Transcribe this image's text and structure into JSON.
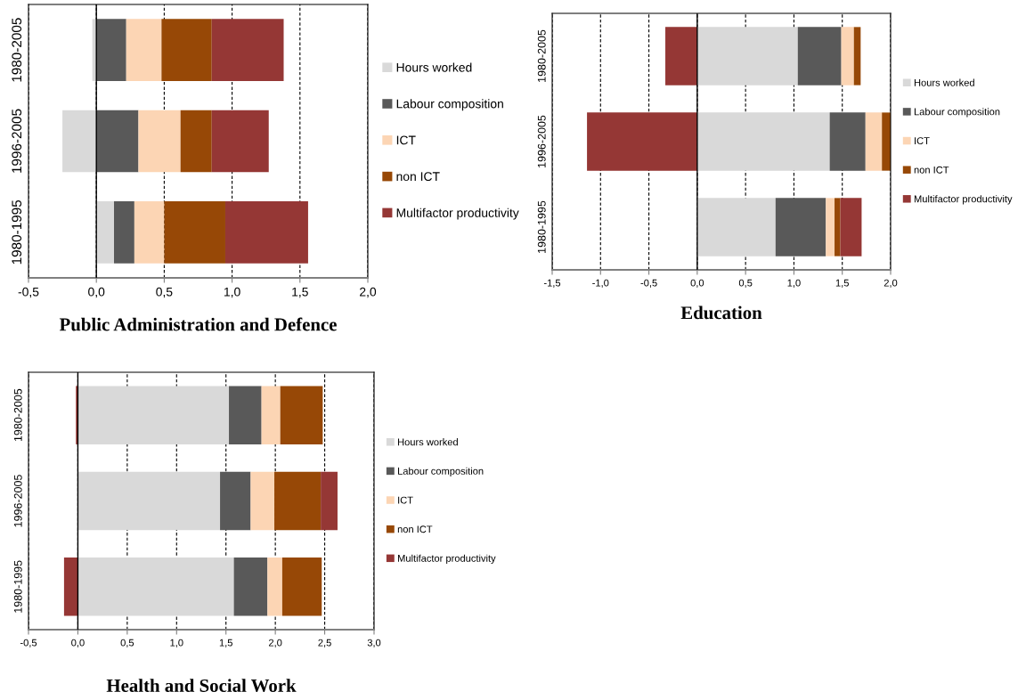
{
  "chart_data": [
    {
      "type": "bar",
      "orientation": "horizontal",
      "stacked": true,
      "title": "Public Administration and Defence",
      "categories": [
        "1980-2005",
        "1996-2005",
        "1980-1995"
      ],
      "xlim": [
        -0.5,
        2.0
      ],
      "xticks": [
        {
          "value": -0.5,
          "label": "-0,5"
        },
        {
          "value": 0.0,
          "label": "0,0"
        },
        {
          "value": 0.5,
          "label": "0,5"
        },
        {
          "value": 1.0,
          "label": "1,0"
        },
        {
          "value": 1.5,
          "label": "1,5"
        },
        {
          "value": 2.0,
          "label": "2,0"
        }
      ],
      "grid": "x",
      "legend": "right",
      "series": [
        {
          "name": "Hours worked",
          "color": "#d9d9d9",
          "values": [
            -0.03,
            -0.25,
            0.13
          ]
        },
        {
          "name": "Labour composition",
          "color": "#595959",
          "values": [
            0.22,
            0.31,
            0.15
          ]
        },
        {
          "name": "ICT",
          "color": "#fcd5b4",
          "values": [
            0.26,
            0.31,
            0.22
          ]
        },
        {
          "name": "non ICT",
          "color": "#974806",
          "values": [
            0.37,
            0.23,
            0.45
          ]
        },
        {
          "name": "Multifactor productivity",
          "color": "#953735",
          "values": [
            0.53,
            0.42,
            0.61
          ]
        }
      ]
    },
    {
      "type": "bar",
      "orientation": "horizontal",
      "stacked": true,
      "title": "Education",
      "categories": [
        "1980-2005",
        "1996-2005",
        "1980-1995"
      ],
      "xlim": [
        -1.5,
        2.0
      ],
      "xticks": [
        {
          "value": -1.5,
          "label": "-1,5"
        },
        {
          "value": -1.0,
          "label": "-1,0"
        },
        {
          "value": -0.5,
          "label": "-0,5"
        },
        {
          "value": 0.0,
          "label": "0,0"
        },
        {
          "value": 0.5,
          "label": "0,5"
        },
        {
          "value": 1.0,
          "label": "1,0"
        },
        {
          "value": 1.5,
          "label": "1,5"
        },
        {
          "value": 2.0,
          "label": "2,0"
        }
      ],
      "grid": "x",
      "legend": "right",
      "series": [
        {
          "name": "Hours worked",
          "color": "#d9d9d9",
          "values": [
            1.04,
            1.37,
            0.81
          ]
        },
        {
          "name": "Labour composition",
          "color": "#595959",
          "values": [
            0.45,
            0.37,
            0.52
          ]
        },
        {
          "name": "ICT",
          "color": "#fcd5b4",
          "values": [
            0.13,
            0.17,
            0.09
          ]
        },
        {
          "name": "non ICT",
          "color": "#974806",
          "values": [
            0.07,
            0.1,
            0.06
          ]
        },
        {
          "name": "Multifactor productivity",
          "color": "#953735",
          "values": [
            -0.33,
            -1.14,
            0.22
          ]
        }
      ]
    },
    {
      "type": "bar",
      "orientation": "horizontal",
      "stacked": true,
      "title": "Health and Social Work",
      "categories": [
        "1980-2005",
        "1996-2005",
        "1980-1995"
      ],
      "xlim": [
        -0.5,
        3.0
      ],
      "xticks": [
        {
          "value": -0.5,
          "label": "-0,5"
        },
        {
          "value": 0.0,
          "label": "0,0"
        },
        {
          "value": 0.5,
          "label": "0,5"
        },
        {
          "value": 1.0,
          "label": "1,0"
        },
        {
          "value": 1.5,
          "label": "1,5"
        },
        {
          "value": 2.0,
          "label": "2,0"
        },
        {
          "value": 2.5,
          "label": "2,5"
        },
        {
          "value": 3.0,
          "label": "3,0"
        }
      ],
      "grid": "x",
      "legend": "right",
      "series": [
        {
          "name": "Hours worked",
          "color": "#d9d9d9",
          "values": [
            1.53,
            1.44,
            1.58
          ]
        },
        {
          "name": "Labour composition",
          "color": "#595959",
          "values": [
            0.33,
            0.31,
            0.34
          ]
        },
        {
          "name": "ICT",
          "color": "#fcd5b4",
          "values": [
            0.19,
            0.24,
            0.15
          ]
        },
        {
          "name": "non ICT",
          "color": "#974806",
          "values": [
            0.43,
            0.47,
            0.4
          ]
        },
        {
          "name": "Multifactor productivity",
          "color": "#953735",
          "values": [
            -0.02,
            0.17,
            -0.14
          ]
        }
      ]
    }
  ]
}
